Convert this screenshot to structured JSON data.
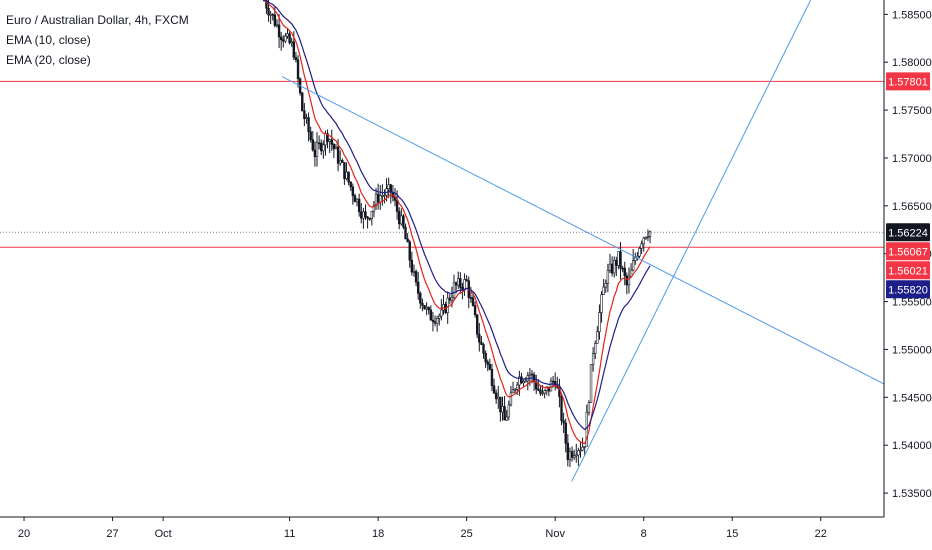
{
  "legend": {
    "title": "Euro / Australian Dollar, 4h, FXCM",
    "ema10": "EMA (10, close)",
    "ema20": "EMA (20, close)"
  },
  "chart_data": {
    "type": "candlestick",
    "symbol": "EURAUD",
    "y_ticks": [
      "1.58500",
      "1.58000",
      "1.57500",
      "1.57000",
      "1.56500",
      "1.56000",
      "1.55500",
      "1.55000",
      "1.54500",
      "1.54000",
      "1.53500"
    ],
    "y_tick_values": [
      1.585,
      1.58,
      1.575,
      1.57,
      1.565,
      1.56,
      1.555,
      1.55,
      1.545,
      1.54,
      1.535
    ],
    "ylim": [
      1.5325,
      1.5865
    ],
    "x_ticks": [
      {
        "label": "20",
        "day": -11
      },
      {
        "label": "27",
        "day": -4
      },
      {
        "label": "Oct",
        "day": 0
      },
      {
        "label": "11",
        "day": 10
      },
      {
        "label": "18",
        "day": 17
      },
      {
        "label": "25",
        "day": 24
      },
      {
        "label": "Nov",
        "day": 31
      },
      {
        "label": "8",
        "day": 38
      },
      {
        "label": "15",
        "day": 45
      },
      {
        "label": "22",
        "day": 52
      }
    ],
    "xlim_days": [
      -12.9,
      57.0
    ],
    "price_badges": [
      {
        "value": 1.578,
        "label": "1.57801",
        "color": "#f23645"
      },
      {
        "value": 1.56224,
        "label": "1.56224",
        "color": "#131722"
      },
      {
        "value": 1.56067,
        "label": "1.56067",
        "color": "#f23645"
      },
      {
        "value": 1.56021,
        "label": "1.56021",
        "color": "#f23645"
      },
      {
        "value": 1.5582,
        "label": "1.55820",
        "color": "#1e1e8a"
      }
    ],
    "horizontal_lines": [
      {
        "value": 1.578,
        "color": "#f23645",
        "style": "solid"
      },
      {
        "value": 1.56067,
        "color": "#f23645",
        "style": "solid"
      },
      {
        "value": 1.56224,
        "color": "#787b86",
        "style": "dotted"
      }
    ],
    "trendlines": [
      {
        "from": {
          "day": 9.4,
          "price": 1.5785
        },
        "to": {
          "day": 57.0,
          "price": 1.5464
        },
        "color": "#4d9be8"
      },
      {
        "from": {
          "day": 32.3,
          "price": 1.5362
        },
        "to": {
          "day": 51.2,
          "price": 1.5865
        },
        "color": "#4d9be8"
      }
    ],
    "path": [
      {
        "day": 8.0,
        "price": 1.5865
      },
      {
        "day": 9.3,
        "price": 1.583
      },
      {
        "day": 10.3,
        "price": 1.5815
      },
      {
        "day": 11.0,
        "price": 1.575
      },
      {
        "day": 12.0,
        "price": 1.5705
      },
      {
        "day": 13.0,
        "price": 1.5725
      },
      {
        "day": 14.0,
        "price": 1.5695
      },
      {
        "day": 15.0,
        "price": 1.5665
      },
      {
        "day": 16.0,
        "price": 1.5635
      },
      {
        "day": 17.0,
        "price": 1.566
      },
      {
        "day": 18.0,
        "price": 1.5665
      },
      {
        "day": 19.0,
        "price": 1.5625
      },
      {
        "day": 20.0,
        "price": 1.5565
      },
      {
        "day": 21.0,
        "price": 1.5535
      },
      {
        "day": 22.0,
        "price": 1.5535
      },
      {
        "day": 23.0,
        "price": 1.5565
      },
      {
        "day": 24.0,
        "price": 1.557
      },
      {
        "day": 25.0,
        "price": 1.551
      },
      {
        "day": 26.0,
        "price": 1.547
      },
      {
        "day": 27.0,
        "price": 1.5425
      },
      {
        "day": 28.0,
        "price": 1.547
      },
      {
        "day": 29.0,
        "price": 1.5475
      },
      {
        "day": 30.0,
        "price": 1.545
      },
      {
        "day": 31.0,
        "price": 1.547
      },
      {
        "day": 32.0,
        "price": 1.539
      },
      {
        "day": 32.7,
        "price": 1.5398
      },
      {
        "day": 33.3,
        "price": 1.54
      },
      {
        "day": 34.0,
        "price": 1.55
      },
      {
        "day": 35.0,
        "price": 1.5575
      },
      {
        "day": 36.0,
        "price": 1.5595
      },
      {
        "day": 36.7,
        "price": 1.5565
      },
      {
        "day": 37.3,
        "price": 1.5595
      },
      {
        "day": 37.8,
        "price": 1.5615
      },
      {
        "day": 38.3,
        "price": 1.5625
      },
      {
        "day": 38.6,
        "price": 1.5622
      }
    ]
  }
}
